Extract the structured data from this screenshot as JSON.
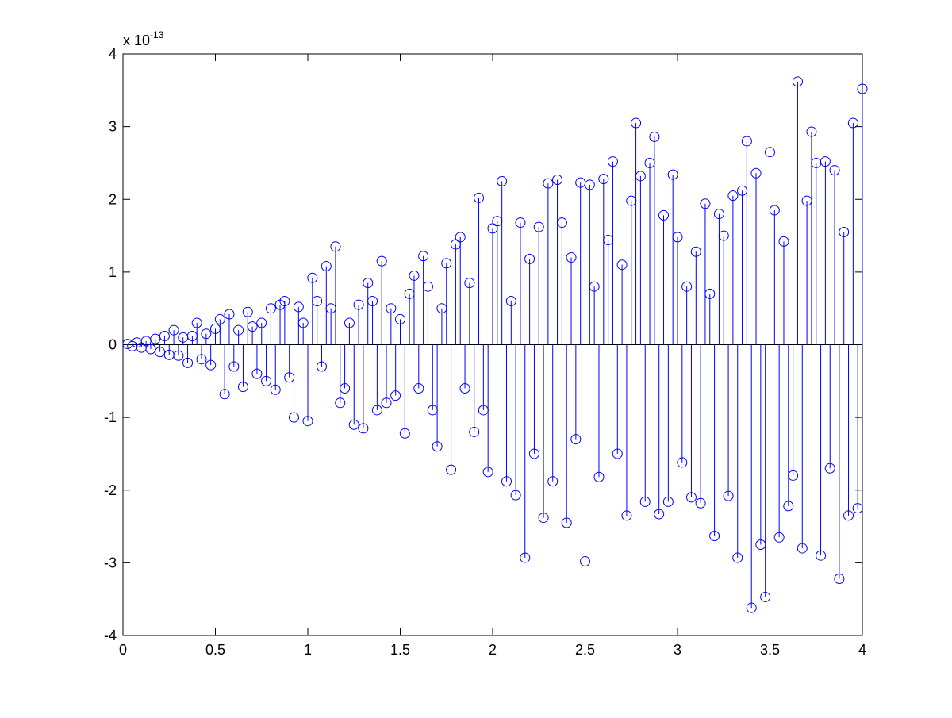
{
  "chart_data": {
    "type": "stem",
    "scale_label": {
      "base": "x 10",
      "exponent": "-13"
    },
    "x": [
      0.025,
      0.05,
      0.075,
      0.1,
      0.125,
      0.15,
      0.175,
      0.2,
      0.225,
      0.25,
      0.275,
      0.3,
      0.325,
      0.35,
      0.375,
      0.4,
      0.425,
      0.45,
      0.475,
      0.5,
      0.525,
      0.55,
      0.575,
      0.6,
      0.625,
      0.65,
      0.675,
      0.7,
      0.725,
      0.75,
      0.775,
      0.8,
      0.825,
      0.85,
      0.875,
      0.9,
      0.925,
      0.95,
      0.975,
      1.0,
      1.025,
      1.05,
      1.075,
      1.1,
      1.125,
      1.15,
      1.175,
      1.2,
      1.225,
      1.25,
      1.275,
      1.3,
      1.325,
      1.35,
      1.375,
      1.4,
      1.425,
      1.45,
      1.475,
      1.5,
      1.525,
      1.55,
      1.575,
      1.6,
      1.625,
      1.65,
      1.675,
      1.7,
      1.725,
      1.75,
      1.775,
      1.8,
      1.825,
      1.85,
      1.875,
      1.9,
      1.925,
      1.95,
      1.975,
      2.0,
      2.025,
      2.05,
      2.075,
      2.1,
      2.125,
      2.15,
      2.175,
      2.2,
      2.225,
      2.25,
      2.275,
      2.3,
      2.325,
      2.35,
      2.375,
      2.4,
      2.425,
      2.45,
      2.475,
      2.5,
      2.525,
      2.55,
      2.575,
      2.6,
      2.625,
      2.65,
      2.675,
      2.7,
      2.725,
      2.75,
      2.775,
      2.8,
      2.825,
      2.85,
      2.875,
      2.9,
      2.925,
      2.95,
      2.975,
      3.0,
      3.025,
      3.05,
      3.075,
      3.1,
      3.125,
      3.15,
      3.175,
      3.2,
      3.225,
      3.25,
      3.275,
      3.3,
      3.325,
      3.35,
      3.375,
      3.4,
      3.425,
      3.45,
      3.475,
      3.5,
      3.525,
      3.55,
      3.575,
      3.6,
      3.625,
      3.65,
      3.675,
      3.7,
      3.725,
      3.75,
      3.775,
      3.8,
      3.825,
      3.85,
      3.875,
      3.9,
      3.925,
      3.95,
      3.975,
      4.0
    ],
    "series": [
      {
        "color": "#0000ff",
        "values": [
          0.01,
          -0.02,
          0.03,
          -0.04,
          0.05,
          -0.06,
          0.08,
          -0.1,
          0.12,
          -0.14,
          0.2,
          -0.15,
          0.1,
          -0.25,
          0.12,
          0.3,
          -0.2,
          0.15,
          -0.28,
          0.22,
          0.35,
          -0.68,
          0.42,
          -0.3,
          0.2,
          -0.58,
          0.45,
          0.25,
          -0.4,
          0.3,
          -0.5,
          0.5,
          -0.62,
          0.55,
          0.6,
          -0.45,
          -1.0,
          0.52,
          0.3,
          -1.05,
          0.92,
          0.6,
          -0.3,
          1.08,
          0.5,
          1.35,
          -0.8,
          -0.6,
          0.3,
          -1.1,
          0.55,
          -1.15,
          0.85,
          0.6,
          -0.9,
          1.15,
          -0.8,
          0.5,
          -0.7,
          0.35,
          -1.22,
          0.7,
          0.95,
          -0.6,
          1.22,
          0.8,
          -0.9,
          -1.4,
          0.5,
          1.12,
          -1.72,
          1.38,
          1.48,
          -0.6,
          0.85,
          -1.2,
          2.02,
          -0.9,
          -1.75,
          1.6,
          1.7,
          2.25,
          -1.88,
          0.6,
          -2.07,
          1.68,
          -2.93,
          1.18,
          -1.5,
          1.62,
          -2.38,
          2.22,
          -1.88,
          2.27,
          1.68,
          -2.45,
          1.2,
          -1.3,
          2.23,
          -2.98,
          2.2,
          0.8,
          -1.82,
          2.28,
          1.44,
          2.52,
          -1.5,
          1.1,
          -2.35,
          1.98,
          3.05,
          2.32,
          -2.16,
          2.5,
          2.86,
          -2.33,
          1.78,
          -2.16,
          2.34,
          1.48,
          -1.62,
          0.8,
          -2.1,
          1.28,
          -2.18,
          1.94,
          0.7,
          -2.63,
          1.8,
          1.5,
          -2.08,
          2.05,
          -2.93,
          2.12,
          2.8,
          -3.62,
          2.36,
          -2.75,
          -3.47,
          2.65,
          1.85,
          -2.65,
          1.42,
          -2.22,
          -1.8,
          3.62,
          -2.8,
          1.98,
          2.93,
          2.5,
          -2.9,
          2.52,
          -1.7,
          2.4,
          -3.22,
          1.55,
          -2.35,
          3.05,
          -2.25,
          3.52
        ]
      }
    ],
    "xlim": [
      0,
      4
    ],
    "ylim": [
      -4,
      4
    ],
    "xticks": [
      0,
      0.5,
      1,
      1.5,
      2,
      2.5,
      3,
      3.5,
      4
    ],
    "yticks": [
      -4,
      -3,
      -2,
      -1,
      0,
      1,
      2,
      3,
      4
    ]
  }
}
